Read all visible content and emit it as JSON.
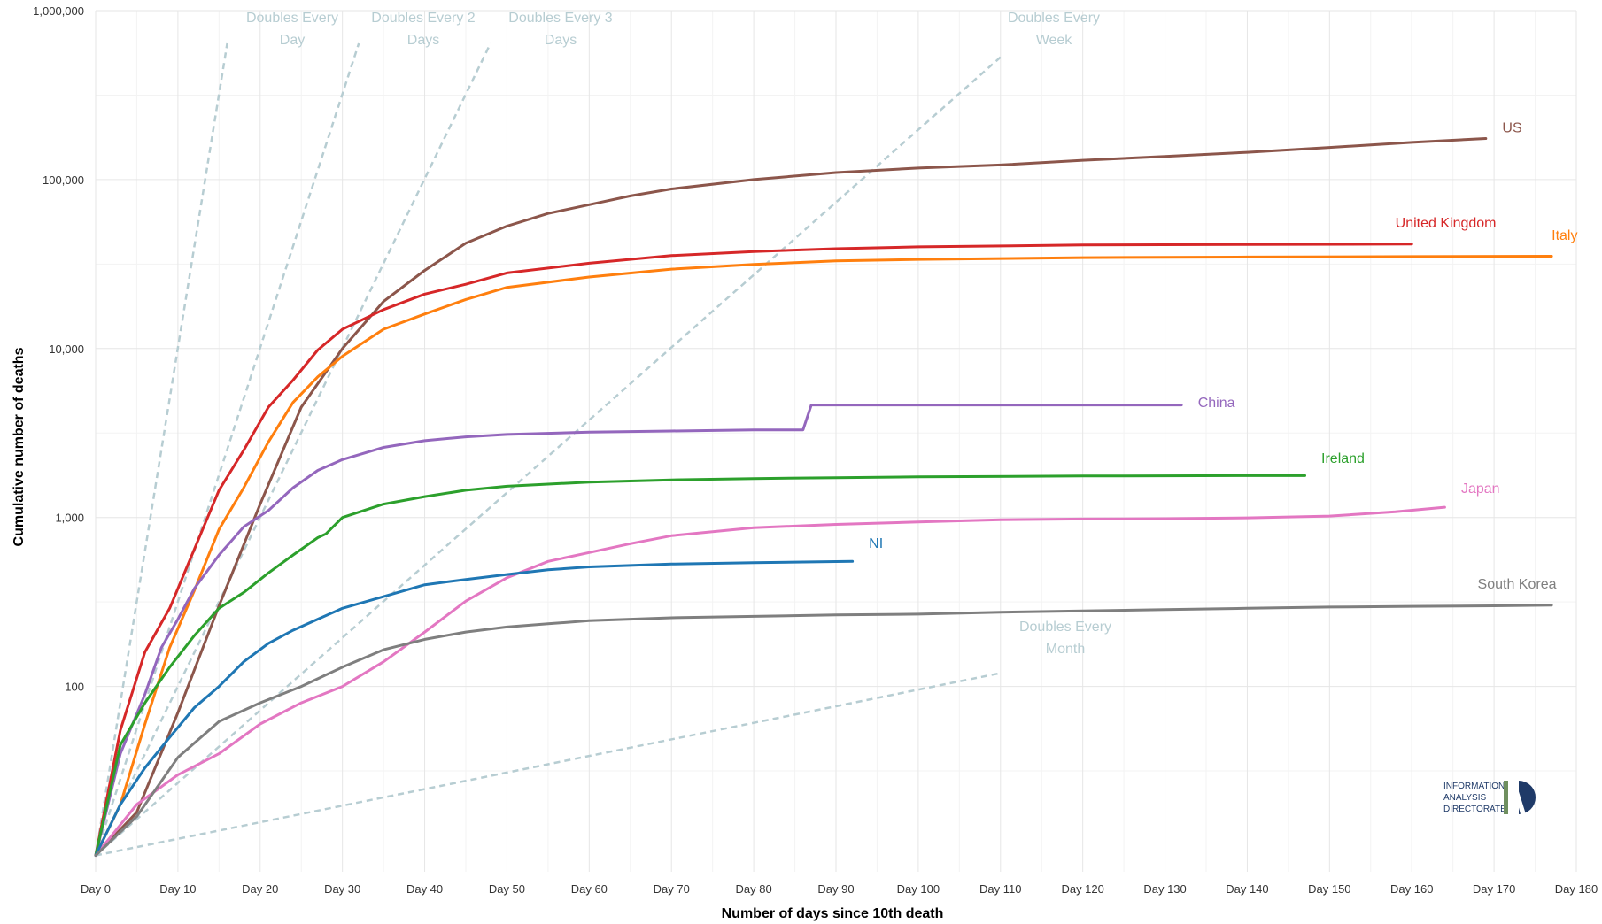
{
  "chart_data": {
    "type": "line",
    "title": "",
    "xlabel": "Number of days since 10th death",
    "ylabel": "Cumulative number of deaths",
    "y_scale": "log",
    "xlim": [
      0,
      180
    ],
    "ylim": [
      8,
      1000000
    ],
    "x_ticks": [
      {
        "v": 0,
        "label": "Day 0"
      },
      {
        "v": 10,
        "label": "Day 10"
      },
      {
        "v": 20,
        "label": "Day 20"
      },
      {
        "v": 30,
        "label": "Day 30"
      },
      {
        "v": 40,
        "label": "Day 40"
      },
      {
        "v": 50,
        "label": "Day 50"
      },
      {
        "v": 60,
        "label": "Day 60"
      },
      {
        "v": 70,
        "label": "Day 70"
      },
      {
        "v": 80,
        "label": "Day 80"
      },
      {
        "v": 90,
        "label": "Day 90"
      },
      {
        "v": 100,
        "label": "Day 100"
      },
      {
        "v": 110,
        "label": "Day 110"
      },
      {
        "v": 120,
        "label": "Day 120"
      },
      {
        "v": 130,
        "label": "Day 130"
      },
      {
        "v": 140,
        "label": "Day 140"
      },
      {
        "v": 150,
        "label": "Day 150"
      },
      {
        "v": 160,
        "label": "Day 160"
      },
      {
        "v": 170,
        "label": "Day 170"
      },
      {
        "v": 180,
        "label": "Day 180"
      }
    ],
    "y_ticks": [
      {
        "v": 100,
        "label": "100"
      },
      {
        "v": 1000,
        "label": "1,000"
      },
      {
        "v": 10000,
        "label": "10,000"
      },
      {
        "v": 100000,
        "label": "100,000"
      },
      {
        "v": 1000000,
        "label": "1,000,000"
      }
    ],
    "grid": true,
    "reference_lines": [
      {
        "name": "Doubles Every Day",
        "label_lines": [
          "Doubles Every",
          "Day"
        ],
        "x": [
          0,
          16
        ],
        "y": [
          10,
          640000
        ],
        "color": "#b7cdd2"
      },
      {
        "name": "Doubles Every 2 Days",
        "label_lines": [
          "Doubles Every 2",
          "Days"
        ],
        "x": [
          0,
          32
        ],
        "y": [
          10,
          640000
        ],
        "color": "#b7cdd2"
      },
      {
        "name": "Doubles Every 3 Days",
        "label_lines": [
          "Doubles Every 3",
          "Days"
        ],
        "x": [
          0,
          48
        ],
        "y": [
          10,
          640000
        ],
        "color": "#b7cdd2"
      },
      {
        "name": "Doubles Every Week",
        "label_lines": [
          "Doubles Every",
          "Week"
        ],
        "x": [
          0,
          110
        ],
        "y": [
          10,
          530000
        ],
        "color": "#b7cdd2"
      },
      {
        "name": "Doubles Every Month",
        "label_lines": [
          "Doubles Every",
          "Month"
        ],
        "x": [
          0,
          110
        ],
        "y": [
          10,
          120
        ],
        "color": "#b7cdd2"
      }
    ],
    "series": [
      {
        "name": "US",
        "color": "#8c564b",
        "x": [
          0,
          5,
          10,
          15,
          20,
          25,
          30,
          35,
          40,
          45,
          50,
          55,
          60,
          65,
          70,
          80,
          90,
          100,
          110,
          120,
          130,
          140,
          150,
          160,
          169
        ],
        "y": [
          10,
          18,
          70,
          300,
          1200,
          4500,
          10000,
          19000,
          29000,
          42000,
          53000,
          63000,
          71000,
          80000,
          88000,
          100000,
          110000,
          117000,
          122000,
          130000,
          137000,
          145000,
          155000,
          166000,
          175000
        ]
      },
      {
        "name": "United Kingdom",
        "color": "#d62728",
        "x": [
          0,
          3,
          6,
          9,
          12,
          15,
          18,
          21,
          24,
          27,
          30,
          35,
          40,
          45,
          50,
          60,
          70,
          80,
          90,
          100,
          120,
          140,
          160
        ],
        "y": [
          10,
          55,
          160,
          290,
          650,
          1450,
          2500,
          4500,
          6500,
          9800,
          13000,
          17000,
          21000,
          24000,
          28000,
          32000,
          35500,
          37500,
          39000,
          40000,
          41000,
          41300,
          41500
        ]
      },
      {
        "name": "Italy",
        "color": "#ff7f0e",
        "x": [
          0,
          3,
          6,
          9,
          12,
          15,
          18,
          21,
          24,
          27,
          30,
          35,
          40,
          45,
          50,
          60,
          70,
          80,
          90,
          100,
          120,
          140,
          160,
          177
        ],
        "y": [
          10,
          20,
          60,
          170,
          370,
          850,
          1500,
          2800,
          4800,
          6800,
          9000,
          13000,
          16000,
          19500,
          23000,
          26500,
          29500,
          31500,
          33000,
          33700,
          34500,
          34800,
          35000,
          35200
        ]
      },
      {
        "name": "China",
        "color": "#9467bd",
        "x": [
          0,
          3,
          6,
          8,
          10,
          12,
          15,
          18,
          21,
          24,
          27,
          30,
          35,
          40,
          45,
          50,
          60,
          70,
          80,
          86,
          87,
          100,
          110,
          120,
          132
        ],
        "y": [
          10,
          40,
          90,
          170,
          250,
          380,
          600,
          880,
          1100,
          1500,
          1900,
          2200,
          2600,
          2850,
          3000,
          3100,
          3200,
          3250,
          3300,
          3300,
          4630,
          4630,
          4630,
          4630,
          4630
        ]
      },
      {
        "name": "Ireland",
        "color": "#2ca02c",
        "x": [
          0,
          3,
          6,
          9,
          12,
          15,
          18,
          21,
          24,
          27,
          28,
          30,
          35,
          40,
          45,
          50,
          60,
          70,
          80,
          90,
          100,
          120,
          140,
          147
        ],
        "y": [
          10,
          45,
          80,
          130,
          200,
          290,
          360,
          470,
          600,
          760,
          800,
          1000,
          1200,
          1330,
          1450,
          1530,
          1620,
          1670,
          1700,
          1720,
          1740,
          1760,
          1770,
          1770
        ]
      },
      {
        "name": "Japan",
        "color": "#e377c2",
        "x": [
          0,
          5,
          10,
          15,
          20,
          25,
          30,
          35,
          40,
          45,
          50,
          55,
          60,
          65,
          70,
          80,
          90,
          100,
          110,
          120,
          130,
          140,
          150,
          158,
          164
        ],
        "y": [
          10,
          20,
          30,
          40,
          60,
          80,
          100,
          140,
          210,
          320,
          440,
          550,
          620,
          700,
          780,
          870,
          910,
          940,
          970,
          980,
          985,
          995,
          1020,
          1080,
          1150
        ]
      },
      {
        "name": "NI",
        "color": "#1f77b4",
        "x": [
          0,
          3,
          6,
          9,
          12,
          15,
          18,
          21,
          24,
          27,
          30,
          35,
          40,
          45,
          50,
          55,
          60,
          70,
          80,
          92
        ],
        "y": [
          10,
          20,
          33,
          50,
          75,
          100,
          140,
          180,
          215,
          250,
          290,
          340,
          400,
          430,
          460,
          490,
          510,
          530,
          540,
          550
        ]
      },
      {
        "name": "South Korea",
        "color": "#7f7f7f",
        "x": [
          0,
          5,
          10,
          15,
          20,
          25,
          30,
          35,
          40,
          45,
          50,
          55,
          60,
          70,
          80,
          90,
          100,
          110,
          120,
          130,
          140,
          150,
          160,
          170,
          177
        ],
        "y": [
          10,
          17,
          38,
          62,
          80,
          100,
          130,
          165,
          190,
          210,
          225,
          235,
          245,
          255,
          260,
          265,
          268,
          275,
          280,
          285,
          290,
          295,
          298,
          300,
          303
        ]
      }
    ],
    "series_labels": [
      {
        "series": "US",
        "x": 171,
        "y": 190000
      },
      {
        "series": "United Kingdom",
        "x": 158,
        "y": 52000
      },
      {
        "series": "Italy",
        "x": 177,
        "y": 44000
      },
      {
        "series": "China",
        "x": 134,
        "y": 4500
      },
      {
        "series": "Ireland",
        "x": 149,
        "y": 2100
      },
      {
        "series": "Japan",
        "x": 166,
        "y": 1400
      },
      {
        "series": "NI",
        "x": 94,
        "y": 660
      },
      {
        "series": "South Korea",
        "x": 168,
        "y": 380
      }
    ]
  },
  "logo": {
    "lines": [
      "INFORMATION",
      "ANALYSIS",
      "DIRECTORATE"
    ],
    "colors": {
      "navy": "#1f3a68",
      "green": "#6f8f5f"
    }
  }
}
